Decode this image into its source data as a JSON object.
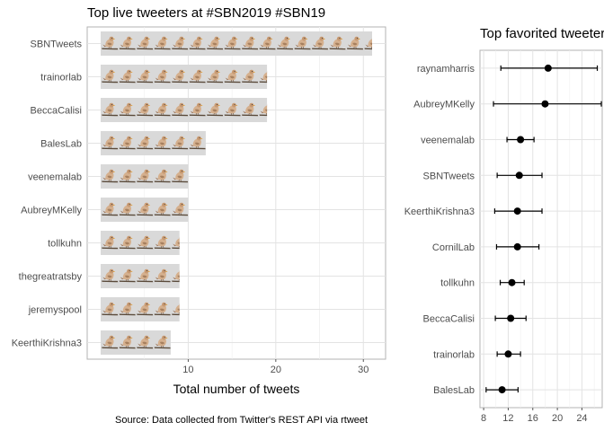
{
  "caption": "Source: Data collected from Twitter's REST API via rtweet",
  "chart_data": [
    {
      "type": "bar",
      "orientation": "horizontal",
      "title": "Top live tweeters at #SBN2019 #SBN19",
      "xlabel": "Total number of tweets",
      "ylabel": "",
      "xlim": [
        0,
        32.5
      ],
      "xticks": [
        10,
        20,
        30
      ],
      "grid": true,
      "mark_icon": "bird-icon",
      "categories": [
        "SBNTweets",
        "trainorlab",
        "BeccaCalisi",
        "BalesLab",
        "veenemalab",
        "AubreyMKelly",
        "tollkuhn",
        "thegreatratsby",
        "jeremyspool",
        "KeerthiKrishna3"
      ],
      "values": [
        31,
        19,
        19,
        12,
        10,
        10,
        9,
        9,
        9,
        8
      ]
    },
    {
      "type": "scatter",
      "subtype": "point-range",
      "title": "Top favorited tweeter",
      "xlabel": "",
      "ylabel": "",
      "xlim": [
        7.4,
        27.3
      ],
      "xticks": [
        8,
        12,
        16,
        20,
        24
      ],
      "grid": true,
      "categories": [
        "raynamharris",
        "AubreyMKelly",
        "veenemalab",
        "SBNTweets",
        "KeerthiKrishna3",
        "CornilLab",
        "tollkuhn",
        "BeccaCalisi",
        "trainorlab",
        "BalesLab"
      ],
      "values": [
        18.5,
        18,
        14,
        13.8,
        13.5,
        13.5,
        12.6,
        12.4,
        12,
        11
      ],
      "lower": [
        10.8,
        9.6,
        11.8,
        10.2,
        9.8,
        10.1,
        10.7,
        9.9,
        10.2,
        8.4
      ],
      "upper": [
        26.5,
        27.2,
        16.2,
        17.5,
        17.5,
        17,
        14.6,
        14.9,
        14,
        13.6
      ]
    }
  ]
}
